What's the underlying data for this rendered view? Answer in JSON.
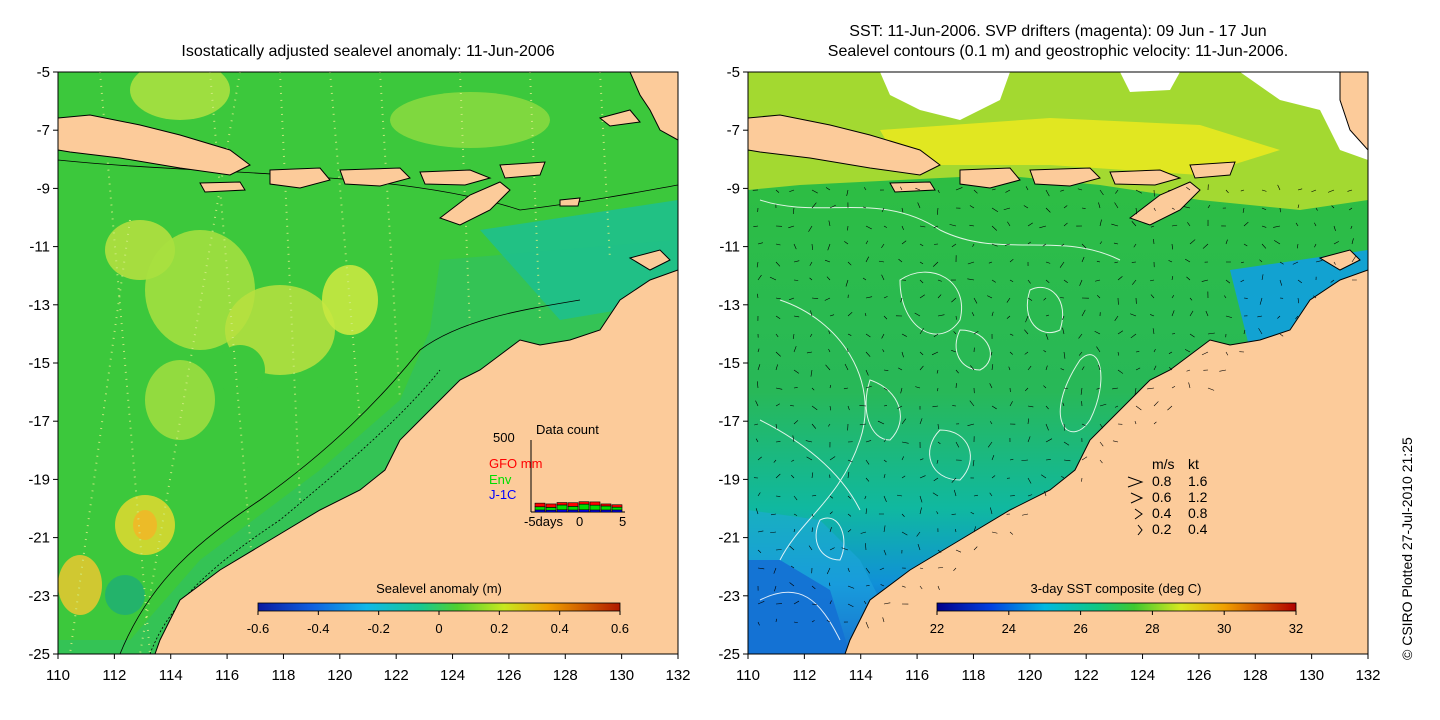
{
  "left_panel": {
    "title": "Isostatically adjusted sealevel anomaly: 11-Jun-2006",
    "colorbar": {
      "title": "Sealevel anomaly (m)",
      "ticks": [
        "-0.6",
        "-0.4",
        "-0.2",
        "0",
        "0.2",
        "0.4",
        "0.6"
      ]
    },
    "data_count": {
      "title": "Data count",
      "y_max_label": "500",
      "legend": [
        {
          "label": "GFO mm",
          "color": "#ff0000"
        },
        {
          "label": "Env",
          "color": "#00dd00"
        },
        {
          "label": "J-1C",
          "color": "#0000ff"
        }
      ],
      "x_labels": [
        "-5days",
        "0",
        "5"
      ],
      "bars": [
        {
          "j1c": 50,
          "env": 80,
          "gfo": 90
        },
        {
          "j1c": 45,
          "env": 70,
          "gfo": 85
        },
        {
          "j1c": 55,
          "env": 120,
          "gfo": 60
        },
        {
          "j1c": 50,
          "env": 90,
          "gfo": 90
        },
        {
          "j1c": 55,
          "env": 140,
          "gfo": 60
        },
        {
          "j1c": 50,
          "env": 120,
          "gfo": 80
        },
        {
          "j1c": 50,
          "env": 100,
          "gfo": 50
        },
        {
          "j1c": 50,
          "env": 70,
          "gfo": 60
        }
      ]
    }
  },
  "right_panel": {
    "title_line1": "SST: 11-Jun-2006. SVP drifters (magenta): 09 Jun - 17 Jun",
    "title_line2": "Sealevel contours (0.1 m) and geostrophic velocity: 11-Jun-2006.",
    "colorbar": {
      "title": "3-day SST composite (deg C)",
      "ticks": [
        "22",
        "24",
        "26",
        "28",
        "30",
        "32"
      ]
    },
    "velocity_legend": {
      "header_ms": "m/s",
      "header_kt": "kt",
      "rows": [
        {
          "ms": "0.8",
          "kt": "1.6"
        },
        {
          "ms": "0.6",
          "kt": "1.2"
        },
        {
          "ms": "0.4",
          "kt": "0.8"
        },
        {
          "ms": "0.2",
          "kt": "0.4"
        }
      ]
    }
  },
  "y_axis_labels": [
    "-5",
    "-7",
    "-9",
    "-11",
    "-13",
    "-15",
    "-17",
    "-19",
    "-21",
    "-23",
    "-25"
  ],
  "x_axis_labels": [
    "110",
    "112",
    "114",
    "116",
    "118",
    "120",
    "122",
    "124",
    "126",
    "128",
    "130",
    "132"
  ],
  "credit": "© CSIRO Plotted 27-Jul-2010 21:25",
  "colors": {
    "land": "#fccb9a",
    "ocean_green": "#3cc83c",
    "ocean_teal": "#1ec08c"
  }
}
